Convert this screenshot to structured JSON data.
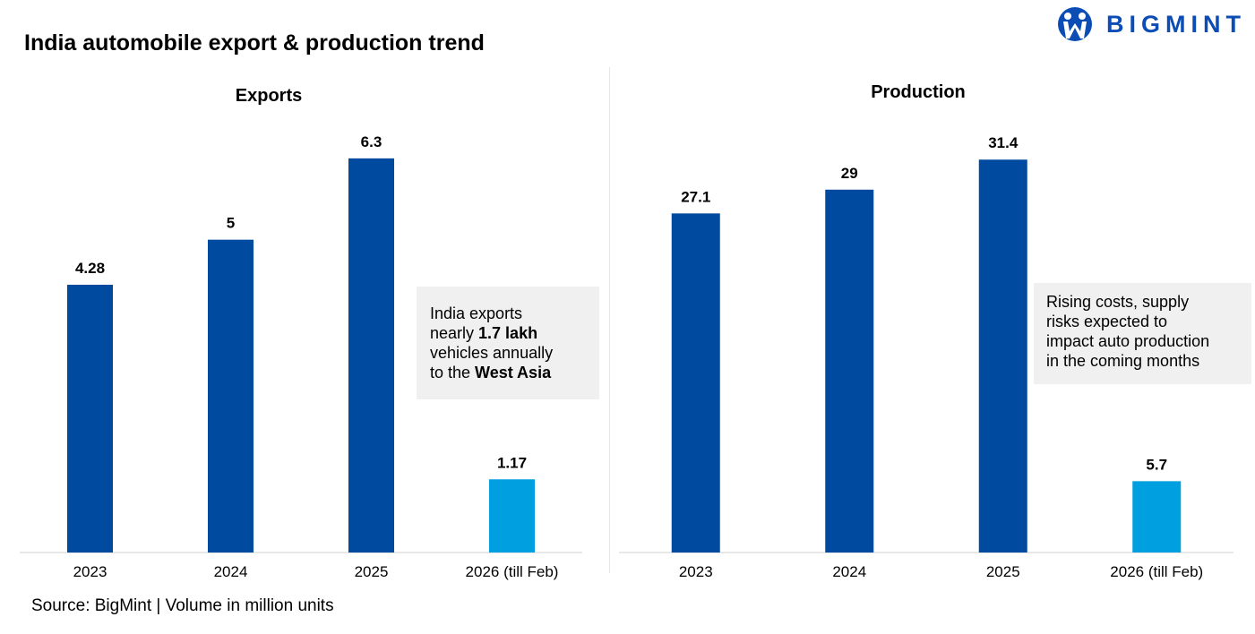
{
  "title": "India automobile export & production trend",
  "logo": {
    "text": "BIGMINT",
    "color": "#0b4db5"
  },
  "source": "Source: BigMint | Volume in million units",
  "colors": {
    "actual": "#004b9f",
    "partial": "#009fe0"
  },
  "chart_data": [
    {
      "type": "bar",
      "title": "Exports",
      "categories": [
        "2023",
        "2024",
        "2025",
        "2026 (till Feb)"
      ],
      "values": [
        4.28,
        5,
        6.3,
        1.17
      ],
      "labels": [
        "4.28",
        "5",
        "6.3",
        "1.17"
      ],
      "ylim": [
        0,
        7.4
      ],
      "grid": false,
      "annotation": {
        "line1a": "India exports",
        "line2a": "nearly ",
        "line2b": "1.7 lakh",
        "line3a": "vehicles annually",
        "line4a": "to the ",
        "line4b": "West Asia"
      }
    },
    {
      "type": "bar",
      "title": "Production",
      "categories": [
        "2023",
        "2024",
        "2025",
        "2026 (till Feb)"
      ],
      "values": [
        27.1,
        29,
        31.4,
        5.7
      ],
      "labels": [
        "27.1",
        "29",
        "31.4",
        "5.7"
      ],
      "ylim": [
        0,
        37
      ],
      "grid": false,
      "annotation": {
        "line1a": "Rising costs, supply",
        "line2a": "risks expected to",
        "line3a": "impact auto production",
        "line4a": "in the coming months"
      }
    }
  ]
}
